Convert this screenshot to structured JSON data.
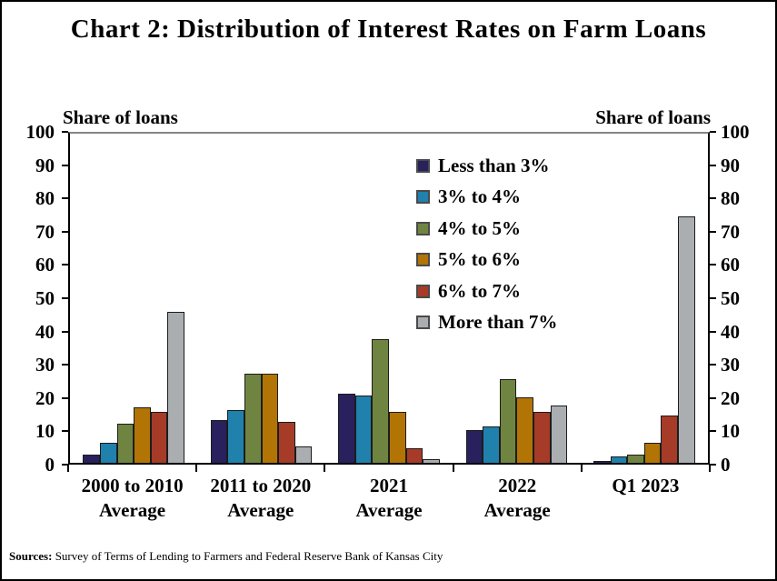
{
  "source": {
    "label": "Sources:",
    "text": " Survey of Terms of Lending to Farmers and Federal Reserve Bank of Kansas City"
  },
  "chart_data": {
    "type": "bar",
    "title": "Chart 2: Distribution of Interest Rates on Farm Loans",
    "xlabel": "",
    "ylabel": "Share of loans",
    "ylabel_right": "Share of loans",
    "ylim": [
      0,
      100
    ],
    "yticks": [
      0,
      10,
      20,
      30,
      40,
      50,
      60,
      70,
      80,
      90,
      100
    ],
    "grid": false,
    "legend_position": "upper center-right, inside plot",
    "categories": [
      "2000 to 2010 Average",
      "2011 to 2020 Average",
      "2021 Average",
      "2022 Average",
      "Q1 2023"
    ],
    "category_lines": [
      [
        "2000 to 2010",
        "Average"
      ],
      [
        "2011 to 2020",
        "Average"
      ],
      [
        "2021",
        "Average"
      ],
      [
        "2022",
        "Average"
      ],
      [
        "Q1 2023"
      ]
    ],
    "series": [
      {
        "name": "Less than 3%",
        "color": "#28215e",
        "values": [
          2.5,
          13,
          21,
          10,
          0.5
        ]
      },
      {
        "name": "3% to 4%",
        "color": "#1f81ac",
        "values": [
          6,
          16,
          20.5,
          11,
          2
        ]
      },
      {
        "name": "4% to 5%",
        "color": "#708441",
        "values": [
          12,
          27,
          37.5,
          25.5,
          2.5
        ]
      },
      {
        "name": "5% to 6%",
        "color": "#b17405",
        "values": [
          17,
          27,
          15.5,
          20,
          6
        ]
      },
      {
        "name": "6% to 7%",
        "color": "#a63b28",
        "values": [
          15.5,
          12.5,
          4.5,
          15.5,
          14.5
        ]
      },
      {
        "name": "More than 7%",
        "color": "#abaeb0",
        "values": [
          46,
          5,
          1,
          17.5,
          75
        ]
      }
    ]
  }
}
